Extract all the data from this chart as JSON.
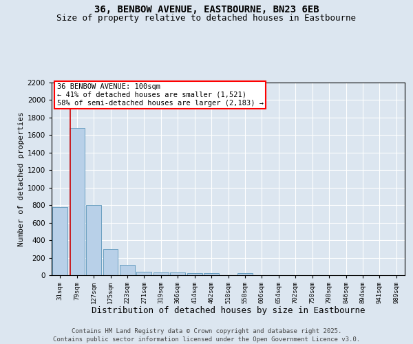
{
  "title_line1": "36, BENBOW AVENUE, EASTBOURNE, BN23 6EB",
  "title_line2": "Size of property relative to detached houses in Eastbourne",
  "xlabel": "Distribution of detached houses by size in Eastbourne",
  "ylabel": "Number of detached properties",
  "categories": [
    "31sqm",
    "79sqm",
    "127sqm",
    "175sqm",
    "223sqm",
    "271sqm",
    "319sqm",
    "366sqm",
    "414sqm",
    "462sqm",
    "510sqm",
    "558sqm",
    "606sqm",
    "654sqm",
    "702sqm",
    "750sqm",
    "798sqm",
    "846sqm",
    "894sqm",
    "941sqm",
    "989sqm"
  ],
  "values": [
    780,
    1680,
    800,
    300,
    115,
    40,
    35,
    35,
    20,
    20,
    0,
    20,
    0,
    0,
    0,
    0,
    0,
    0,
    0,
    0,
    0
  ],
  "bar_color": "#b8d0e8",
  "bar_edge_color": "#6a9fc0",
  "annotation_box_text": "36 BENBOW AVENUE: 100sqm\n← 41% of detached houses are smaller (1,521)\n58% of semi-detached houses are larger (2,183) →",
  "vline_x": 0.62,
  "vline_color": "#cc0000",
  "ylim": [
    0,
    2200
  ],
  "yticks": [
    0,
    200,
    400,
    600,
    800,
    1000,
    1200,
    1400,
    1600,
    1800,
    2000,
    2200
  ],
  "bg_color": "#dce6f0",
  "plot_bg_color": "#dce6f0",
  "grid_color": "#ffffff",
  "footnote": "Contains HM Land Registry data © Crown copyright and database right 2025.\nContains public sector information licensed under the Open Government Licence v3.0.",
  "title_fontsize": 10,
  "subtitle_fontsize": 9,
  "annot_fontsize": 7.5,
  "footnote_fontsize": 6.5,
  "ylabel_fontsize": 8,
  "xlabel_fontsize": 9
}
